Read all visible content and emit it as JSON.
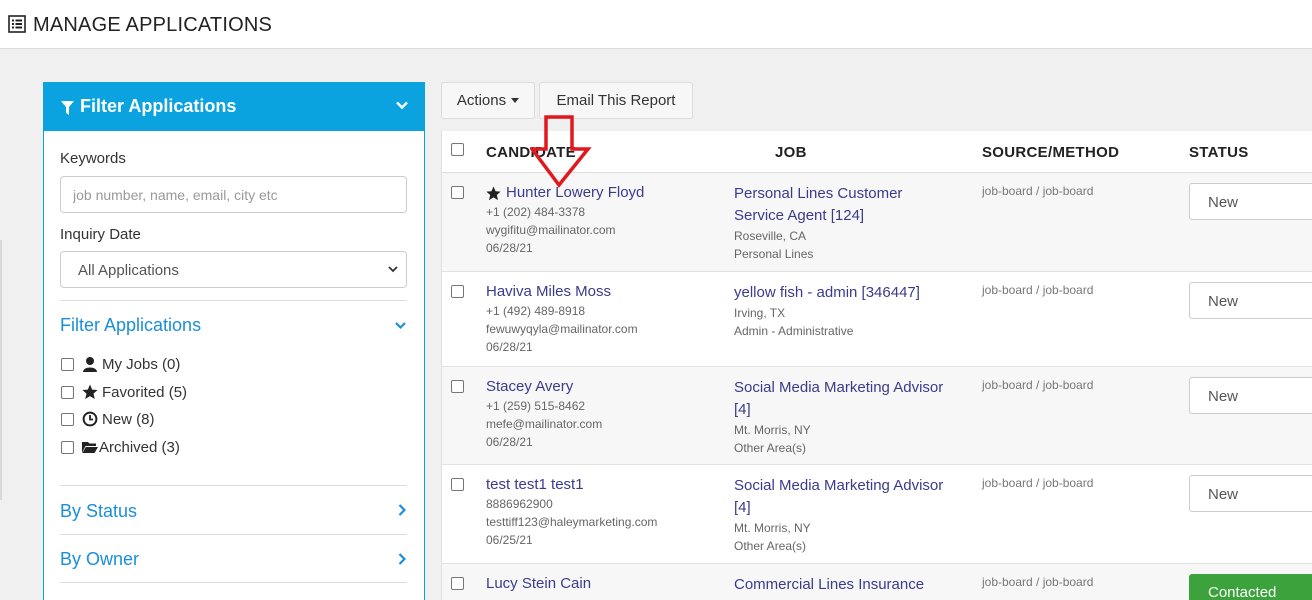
{
  "page": {
    "title": "MANAGE APPLICATIONS",
    "icon": "list-icon"
  },
  "filter_panel": {
    "title": "Filter Applications",
    "keywords_label": "Keywords",
    "keywords_placeholder": "job number, name, email, city etc",
    "inquiry_date_label": "Inquiry Date",
    "inquiry_date_value": "All Applications",
    "filter_section_title": "Filter Applications",
    "filters": [
      {
        "label": "My Jobs (0)",
        "icon": "user-icon"
      },
      {
        "label": "Favorited (5)",
        "icon": "star-icon"
      },
      {
        "label": "New (8)",
        "icon": "clock-icon"
      },
      {
        "label": "Archived (3)",
        "icon": "folder-open-icon"
      }
    ],
    "by_status": "By Status",
    "by_owner": "By Owner",
    "accent_color": "#0aa3e0"
  },
  "toolbar": {
    "actions_label": "Actions",
    "email_report_label": "Email This Report"
  },
  "table": {
    "headers": {
      "candidate": "CANDIDATE",
      "job": "JOB",
      "source": "SOURCE/METHOD",
      "status": "STATUS"
    },
    "rows": [
      {
        "favorited": true,
        "name": "Hunter Lowery Floyd",
        "phone": "+1 (202) 484-3378",
        "email": "wygifitu@mailinator.com",
        "date": "06/28/21",
        "job_title": "Personal Lines Customer Service Agent [124]",
        "location": "Roseville, CA",
        "category": "Personal Lines",
        "source": "job-board / job-board",
        "status": "New"
      },
      {
        "favorited": false,
        "name": "Haviva Miles Moss",
        "phone": "+1 (492) 489-8918",
        "email": "fewuwyqyla@mailinator.com",
        "date": "06/28/21",
        "job_title": "yellow fish - admin [346447]",
        "location": "Irving, TX",
        "category": "Admin - Administrative",
        "source": "job-board / job-board",
        "status": "New"
      },
      {
        "favorited": false,
        "name": "Stacey Avery",
        "phone": "+1 (259) 515-8462",
        "email": "mefe@mailinator.com",
        "date": "06/28/21",
        "job_title": "Social Media Marketing Advisor [4]",
        "location": "Mt. Morris, NY",
        "category": "Other Area(s)",
        "source": "job-board / job-board",
        "status": "New"
      },
      {
        "favorited": false,
        "name": "test test1 test1",
        "phone": "8886962900",
        "email": "testtiff123@haleymarketing.com",
        "date": "06/25/21",
        "job_title": "Social Media Marketing Advisor [4]",
        "location": "Mt. Morris, NY",
        "category": "Other Area(s)",
        "source": "job-board / job-board",
        "status": "New"
      },
      {
        "favorited": false,
        "name": "Lucy Stein Cain",
        "phone": "",
        "email": "",
        "date": "",
        "job_title": "Commercial Lines Insurance",
        "location": "",
        "category": "",
        "source": "job-board / job-board",
        "status": "Contacted"
      }
    ],
    "status_colors": {
      "contacted": "#3ca33c"
    }
  }
}
